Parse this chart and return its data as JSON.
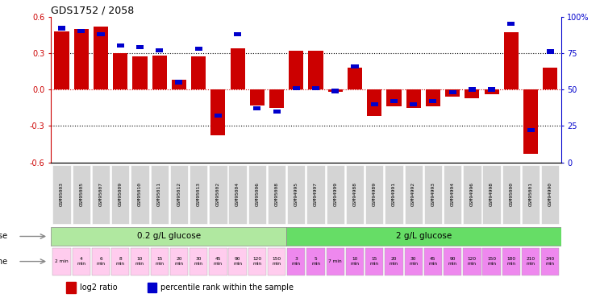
{
  "title": "GDS1752 / 2058",
  "samples": [
    "GSM95003",
    "GSM95005",
    "GSM95007",
    "GSM95009",
    "GSM95010",
    "GSM95011",
    "GSM95012",
    "GSM95013",
    "GSM95002",
    "GSM95004",
    "GSM95006",
    "GSM95008",
    "GSM94995",
    "GSM94997",
    "GSM94999",
    "GSM94988",
    "GSM94989",
    "GSM94991",
    "GSM94992",
    "GSM94993",
    "GSM94994",
    "GSM94996",
    "GSM94998",
    "GSM95000",
    "GSM95001",
    "GSM94990"
  ],
  "log2_ratio": [
    0.48,
    0.5,
    0.52,
    0.3,
    0.27,
    0.28,
    0.08,
    0.27,
    -0.38,
    0.34,
    -0.13,
    -0.15,
    0.32,
    0.32,
    -0.02,
    0.18,
    -0.22,
    -0.14,
    -0.15,
    -0.14,
    -0.06,
    -0.07,
    -0.04,
    0.47,
    -0.53,
    0.18
  ],
  "percentile": [
    92,
    90,
    88,
    80,
    79,
    77,
    55,
    78,
    32,
    88,
    37,
    35,
    51,
    51,
    49,
    66,
    40,
    42,
    40,
    42,
    48,
    50,
    50,
    95,
    22,
    76
  ],
  "dose_labels": [
    "0.2 g/L glucose",
    "2 g/L glucose"
  ],
  "dose_split": 12,
  "dose_color_left": "#b0e8a0",
  "dose_color_right": "#66dd66",
  "time_labels": [
    "2 min",
    "4\nmin",
    "6\nmin",
    "8\nmin",
    "10\nmin",
    "15\nmin",
    "20\nmin",
    "30\nmin",
    "45\nmin",
    "90\nmin",
    "120\nmin",
    "150\nmin",
    "3\nmin",
    "5\nmin",
    "7 min",
    "10\nmin",
    "15\nmin",
    "20\nmin",
    "30\nmin",
    "45\nmin",
    "90\nmin",
    "120\nmin",
    "150\nmin",
    "180\nmin",
    "210\nmin",
    "240\nmin"
  ],
  "time_color_left": "#ffccee",
  "time_color_right": "#ee88ee",
  "bar_color_red": "#cc0000",
  "bar_color_blue": "#0000cc",
  "bg_color": "#ffffff",
  "ylim": [
    -0.6,
    0.6
  ],
  "y2lim": [
    0,
    100
  ],
  "yticks_left": [
    -0.6,
    -0.3,
    0.0,
    0.3,
    0.6
  ],
  "y2ticks": [
    0,
    25,
    50,
    75,
    100
  ],
  "hline_black": [
    -0.3,
    0.3
  ],
  "bar_width": 0.75,
  "sample_bg": "#d4d4d4",
  "dose_split_idx": 12
}
